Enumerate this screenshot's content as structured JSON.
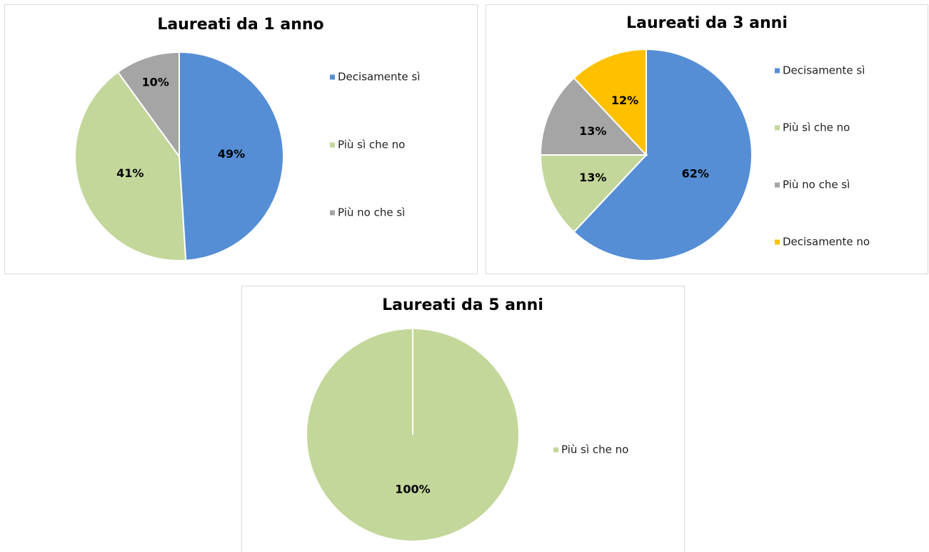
{
  "chart_data": [
    {
      "type": "pie",
      "title": "Laureati da 1 anno",
      "categories": [
        "Decisamente sì",
        "Più sì che no",
        "Più no che sì"
      ],
      "values": [
        49,
        41,
        10
      ],
      "value_labels": [
        "49%",
        "41%",
        "10%"
      ],
      "colors": [
        "#558ed5",
        "#c4d79b",
        "#a5a5a5"
      ]
    },
    {
      "type": "pie",
      "title": "Laureati da 3 anni",
      "categories": [
        "Decisamente sì",
        "Più sì che no",
        "Più no che sì",
        "Decisamente no"
      ],
      "values": [
        62,
        13,
        13,
        12
      ],
      "value_labels": [
        "62%",
        "13%",
        "13%",
        "12%"
      ],
      "colors": [
        "#558ed5",
        "#c4d79b",
        "#a5a5a5",
        "#ffc000"
      ]
    },
    {
      "type": "pie",
      "title": "Laureati da 5 anni",
      "categories": [
        "Più sì che no"
      ],
      "values": [
        100
      ],
      "value_labels": [
        "100%"
      ],
      "colors": [
        "#c4d79b"
      ]
    }
  ]
}
